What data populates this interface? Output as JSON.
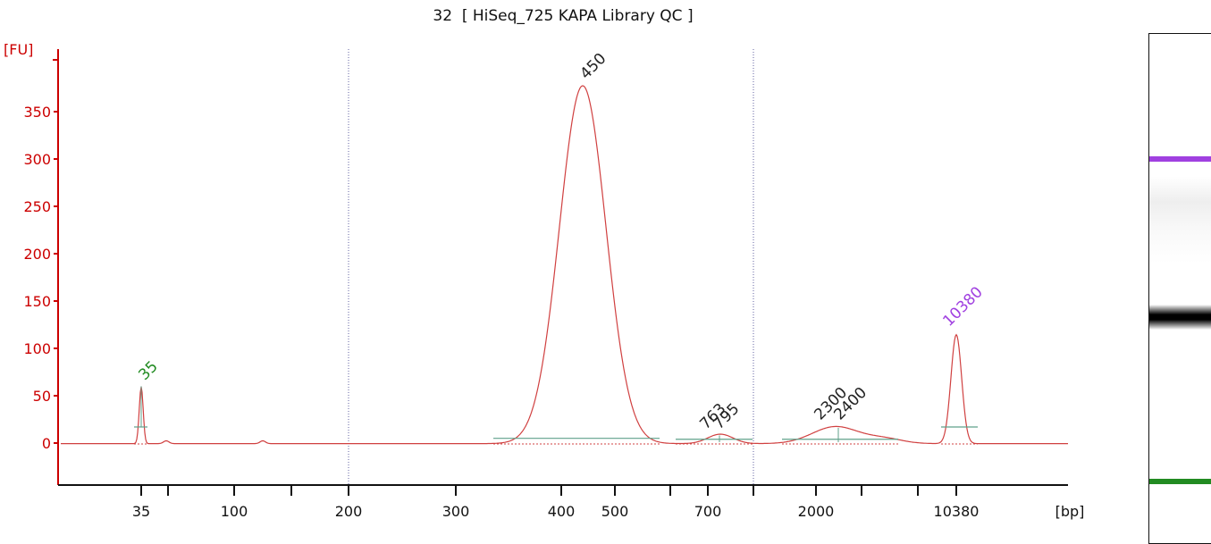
{
  "title": "32  [ HiSeq_725 KAPA Library QC ]",
  "chart_data": {
    "type": "line",
    "title": "32  [ HiSeq_725 KAPA Library QC ]",
    "ylabel": "[FU]",
    "xlabel": "[bp]",
    "ylim": [
      -45,
      400
    ],
    "y_ticks": [
      0,
      50,
      100,
      150,
      200,
      250,
      300,
      350
    ],
    "x_ticks": [
      "35",
      "",
      "100",
      "200",
      "300",
      "400",
      "500",
      "",
      "700",
      "",
      "2000",
      "",
      "",
      "10380"
    ],
    "grid": false,
    "series": [
      {
        "color": "#d04040",
        "points": [
          [
            35,
            60
          ],
          [
            100,
            3
          ],
          [
            450,
            378
          ],
          [
            763,
            10
          ],
          [
            2300,
            18
          ],
          [
            10380,
            115
          ]
        ]
      }
    ],
    "peak_labels": [
      {
        "text": "35",
        "x": 35,
        "y": 60,
        "color": "#228b22"
      },
      {
        "text": "450",
        "x": 450,
        "y": 378,
        "color": "#222222"
      },
      {
        "text": "763",
        "x": 763,
        "y": 10,
        "color": "#222222"
      },
      {
        "text": "795",
        "x": 795,
        "y": 10,
        "color": "#222222"
      },
      {
        "text": "2300",
        "x": 2300,
        "y": 18,
        "color": "#222222"
      },
      {
        "text": "2400",
        "x": 2400,
        "y": 18,
        "color": "#222222"
      },
      {
        "text": "10380",
        "x": 10380,
        "y": 115,
        "color": "#a040e0"
      }
    ],
    "colors": {
      "axis": "#cc0000",
      "trace": "#d04040",
      "baseline": "#5fa08a",
      "marker_low": "#228b22",
      "marker_high": "#a040e0"
    }
  },
  "gel": {
    "bands": [
      {
        "kind": "upper-marker",
        "color": "#a040e0"
      },
      {
        "kind": "library",
        "color": "#000000"
      },
      {
        "kind": "lower-marker",
        "color": "#228b22"
      }
    ]
  }
}
